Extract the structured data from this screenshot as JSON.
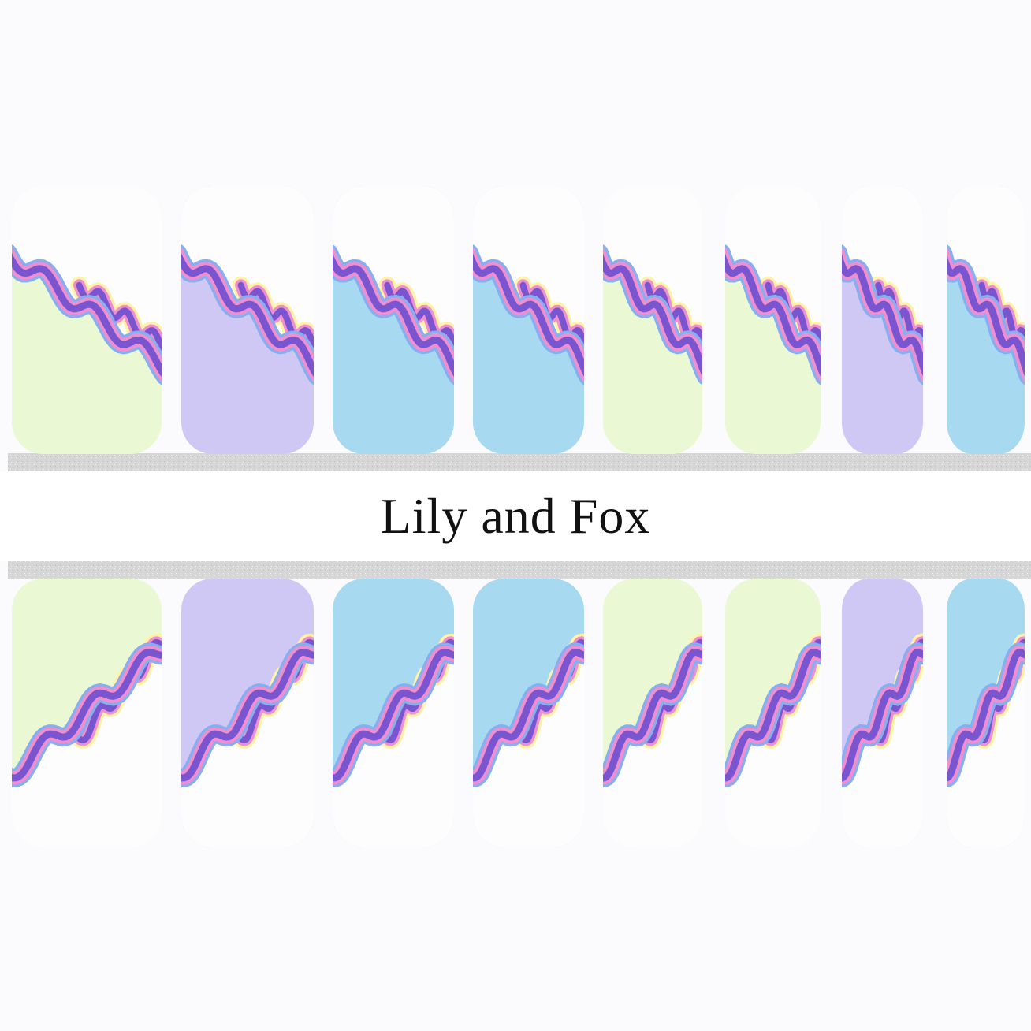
{
  "brand": {
    "name": "Lily and Fox"
  },
  "colors": {
    "green": "#eaf9d4",
    "lavender": "#d0c8f4",
    "blue": "#a7d9f0",
    "white": "#fdfdfe",
    "wave_purple": "#7a55d0",
    "wave_pink": "#f08fd0",
    "wave_blue": "#86aef0",
    "wave_yellow": "#fff3a8",
    "glitter": "#d9d9d9"
  },
  "top_row": [
    "green",
    "lavender",
    "blue",
    "blue",
    "green",
    "green",
    "lavender",
    "blue"
  ],
  "bottom_row": [
    "green",
    "lavender",
    "blue",
    "blue",
    "green",
    "green",
    "lavender",
    "blue"
  ]
}
